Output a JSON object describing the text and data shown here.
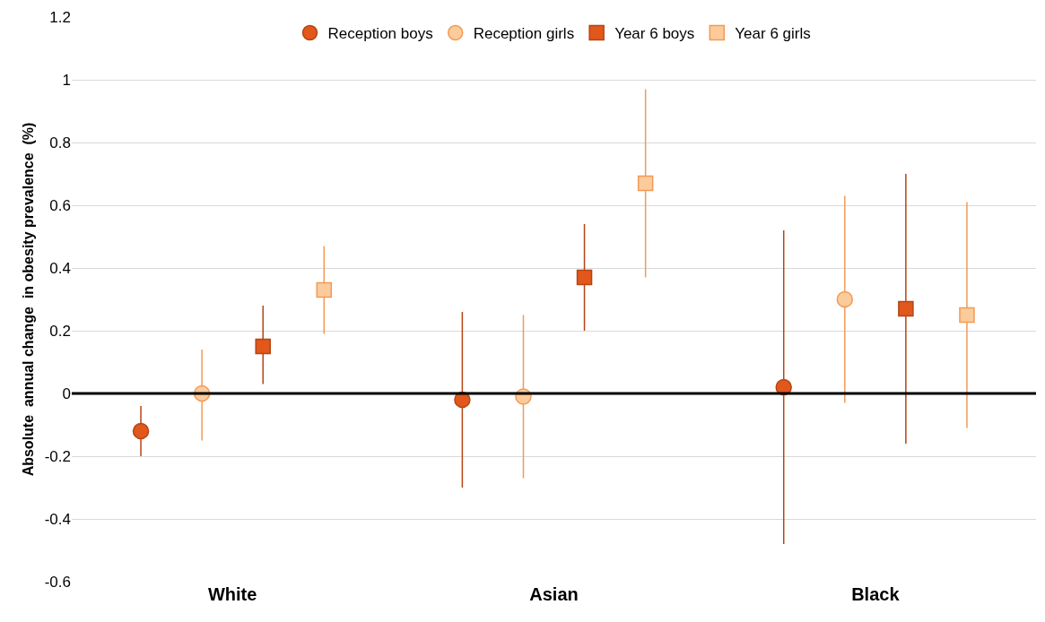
{
  "chart_data": {
    "type": "scatter",
    "ylabel": "Absolute  annual change  in obesity prevalence  (%)",
    "categories": [
      "White",
      "Asian",
      "Black"
    ],
    "series": [
      {
        "name": "Reception boys",
        "color": "#e2571b",
        "marker": "circle",
        "values": [
          -0.12,
          -0.02,
          0.02
        ],
        "errors": [
          [
            -0.2,
            -0.04
          ],
          [
            -0.3,
            0.26
          ],
          [
            -0.48,
            0.52
          ]
        ]
      },
      {
        "name": "Reception girls",
        "color": "#fbcb9b",
        "marker": "circle",
        "values": [
          0.0,
          -0.01,
          0.3
        ],
        "errors": [
          [
            -0.15,
            0.14
          ],
          [
            -0.27,
            0.25
          ],
          [
            -0.03,
            0.63
          ]
        ]
      },
      {
        "name": "Year 6 boys",
        "color": "#e2571b",
        "marker": "square",
        "values": [
          0.15,
          0.37,
          0.27
        ],
        "errors": [
          [
            0.03,
            0.28
          ],
          [
            0.2,
            0.54
          ],
          [
            -0.16,
            0.7
          ]
        ]
      },
      {
        "name": "Year 6 girls",
        "color": "#fbcb9b",
        "marker": "square",
        "values": [
          0.33,
          0.67,
          0.25
        ],
        "errors": [
          [
            0.19,
            0.47
          ],
          [
            0.37,
            0.97
          ],
          [
            -0.11,
            0.61
          ]
        ]
      }
    ],
    "ylim": [
      -0.6,
      1.2
    ],
    "yticks": [
      -0.6,
      -0.4,
      -0.2,
      0,
      0.2,
      0.4,
      0.6,
      0.8,
      1,
      1.2
    ],
    "ref_lines": [
      {
        "axis": "y",
        "value": 0,
        "color": "#000000"
      }
    ],
    "grid": "y",
    "legend": "top"
  }
}
